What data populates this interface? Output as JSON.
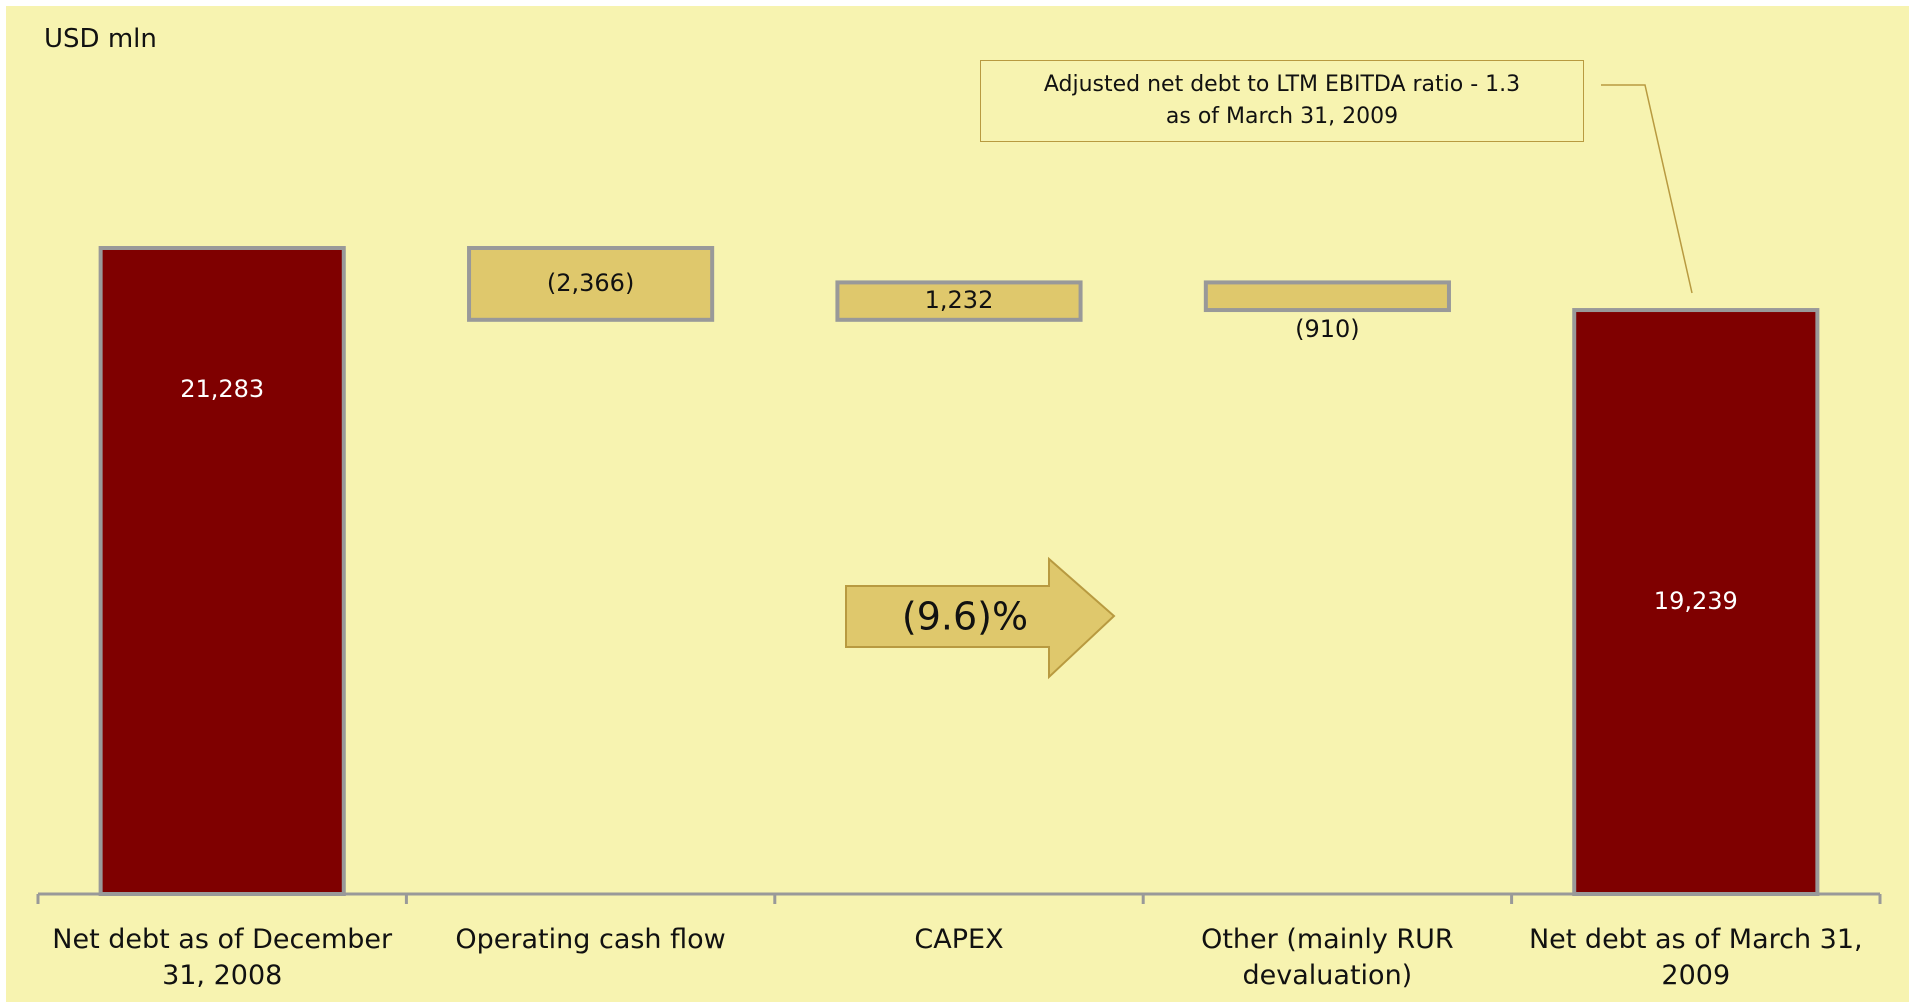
{
  "chart_data": {
    "type": "waterfall",
    "unit_label": "USD mln",
    "annotation": "Adjusted net debt to LTM EBITDA ratio - 1.3 as of March 31, 2009",
    "change_label": "(9.6)%",
    "categories": [
      "Net debt as of December 31, 2008",
      "Operating cash flow",
      "CAPEX",
      "Other (mainly RUR devaluation)",
      "Net debt as of March 31, 2009"
    ],
    "values": [
      21283,
      -2366,
      1232,
      -910,
      19239
    ],
    "value_labels": [
      "21,283",
      "(2,366)",
      "1,232",
      "(910)",
      "19,239"
    ],
    "is_total": [
      true,
      false,
      false,
      false,
      true
    ],
    "colors": {
      "total": "#7f0000",
      "change": "#dfc86c"
    }
  }
}
